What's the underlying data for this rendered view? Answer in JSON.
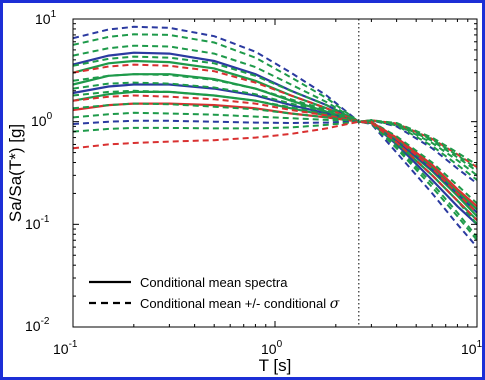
{
  "chart_data": {
    "type": "line",
    "xlabel": "T [s]",
    "ylabel": "Sa/Sa(T*) [g]",
    "xscale": "log",
    "yscale": "log",
    "xlim": [
      0.1,
      10
    ],
    "ylim": [
      0.01,
      10
    ],
    "x_ticks": [
      {
        "base": "10",
        "exp": "-1"
      },
      {
        "base": "10",
        "exp": "0"
      },
      {
        "base": "10",
        "exp": "1"
      }
    ],
    "y_ticks": [
      {
        "base": "10",
        "exp": "-2"
      },
      {
        "base": "10",
        "exp": "-1"
      },
      {
        "base": "10",
        "exp": "0"
      },
      {
        "base": "10",
        "exp": "1"
      }
    ],
    "grid": false,
    "reference_line": {
      "x": 2.6,
      "style": "dotted"
    },
    "legend": {
      "placement": "bottom-left",
      "entries": [
        {
          "label": "Conditional mean spectra",
          "style": "solid"
        },
        {
          "label": "Conditional mean +/- conditional ",
          "symbol": "σ",
          "style": "dashed"
        }
      ]
    },
    "x": [
      0.1,
      0.15,
      0.2,
      0.3,
      0.5,
      0.8,
      1.2,
      1.8,
      2.6,
      3.0,
      4.0,
      6.0,
      8.0,
      10.0
    ],
    "series": [
      {
        "color": "#2b3aa0",
        "style": "solid",
        "values": [
          3.6,
          4.4,
          4.7,
          4.6,
          3.9,
          2.9,
          2.0,
          1.45,
          1.0,
          0.97,
          0.6,
          0.27,
          0.15,
          0.1
        ]
      },
      {
        "color": "#1e9a4a",
        "style": "solid",
        "values": [
          3.0,
          3.7,
          3.9,
          3.8,
          3.3,
          2.5,
          1.8,
          1.35,
          1.0,
          0.97,
          0.62,
          0.3,
          0.17,
          0.11
        ]
      },
      {
        "color": "#1e9a4a",
        "style": "solid",
        "values": [
          2.3,
          2.8,
          2.9,
          2.9,
          2.6,
          2.1,
          1.6,
          1.25,
          1.0,
          0.98,
          0.65,
          0.33,
          0.19,
          0.12
        ]
      },
      {
        "color": "#2b3aa0",
        "style": "solid",
        "values": [
          1.9,
          2.2,
          2.3,
          2.3,
          2.1,
          1.8,
          1.45,
          1.2,
          1.0,
          0.98,
          0.66,
          0.34,
          0.2,
          0.13
        ]
      },
      {
        "color": "#1e9a4a",
        "style": "solid",
        "values": [
          1.6,
          1.85,
          1.95,
          1.95,
          1.8,
          1.6,
          1.35,
          1.15,
          1.0,
          0.98,
          0.68,
          0.36,
          0.21,
          0.14
        ]
      },
      {
        "color": "#d93030",
        "style": "solid",
        "values": [
          1.3,
          1.45,
          1.5,
          1.5,
          1.45,
          1.35,
          1.2,
          1.1,
          1.0,
          0.99,
          0.7,
          0.38,
          0.22,
          0.15
        ]
      },
      {
        "color": "#2b3aa0",
        "style": "dashed",
        "values": [
          6.5,
          7.9,
          8.4,
          8.2,
          6.8,
          4.8,
          3.0,
          1.8,
          1.0,
          1.03,
          0.9,
          0.55,
          0.35,
          0.25
        ]
      },
      {
        "color": "#1e9a4a",
        "style": "dashed",
        "values": [
          5.6,
          6.7,
          7.1,
          7.0,
          5.9,
          4.2,
          2.7,
          1.7,
          1.0,
          1.03,
          0.92,
          0.58,
          0.38,
          0.27
        ]
      },
      {
        "color": "#1e9a4a",
        "style": "dashed",
        "values": [
          4.4,
          5.2,
          5.5,
          5.4,
          4.6,
          3.4,
          2.3,
          1.55,
          1.0,
          1.03,
          0.94,
          0.62,
          0.42,
          0.3
        ]
      },
      {
        "color": "#1e9a4a",
        "style": "dashed",
        "values": [
          3.5,
          4.1,
          4.3,
          4.2,
          3.7,
          2.8,
          2.0,
          1.45,
          1.0,
          1.03,
          0.95,
          0.65,
          0.45,
          0.33
        ]
      },
      {
        "color": "#d93030",
        "style": "dashed",
        "values": [
          3.0,
          3.45,
          3.6,
          3.5,
          3.1,
          2.4,
          1.8,
          1.35,
          1.0,
          1.03,
          0.96,
          0.68,
          0.48,
          0.36
        ]
      },
      {
        "color": "#1e9a4a",
        "style": "dashed",
        "values": [
          2.5,
          2.8,
          2.9,
          2.85,
          2.55,
          2.1,
          1.65,
          1.3,
          1.0,
          1.03,
          0.97,
          0.7,
          0.5,
          0.38
        ]
      },
      {
        "color": "#1e9a4a",
        "style": "dashed",
        "values": [
          2.1,
          2.35,
          2.4,
          2.35,
          2.15,
          1.85,
          1.5,
          1.25,
          1.0,
          1.02,
          0.95,
          0.67,
          0.47,
          0.35
        ]
      },
      {
        "color": "#1e9a4a",
        "style": "dashed",
        "values": [
          1.8,
          1.95,
          2.0,
          1.95,
          1.8,
          1.6,
          1.38,
          1.18,
          1.0,
          1.0,
          0.72,
          0.4,
          0.24,
          0.16
        ]
      },
      {
        "color": "#d93030",
        "style": "dashed",
        "values": [
          1.6,
          1.75,
          1.8,
          1.75,
          1.65,
          1.5,
          1.3,
          1.15,
          1.0,
          1.0,
          0.68,
          0.35,
          0.2,
          0.13
        ]
      },
      {
        "color": "#1e9a4a",
        "style": "dashed",
        "values": [
          1.35,
          1.45,
          1.5,
          1.48,
          1.4,
          1.32,
          1.2,
          1.1,
          1.0,
          0.98,
          0.62,
          0.3,
          0.17,
          0.1
        ]
      },
      {
        "color": "#1e9a4a",
        "style": "dashed",
        "values": [
          1.1,
          1.18,
          1.22,
          1.2,
          1.17,
          1.12,
          1.08,
          1.04,
          1.0,
          0.97,
          0.57,
          0.25,
          0.13,
          0.075
        ]
      },
      {
        "color": "#2b3aa0",
        "style": "dashed",
        "values": [
          0.95,
          1.0,
          1.02,
          1.02,
          1.0,
          0.98,
          0.97,
          0.98,
          1.0,
          0.95,
          0.5,
          0.2,
          0.1,
          0.06
        ]
      },
      {
        "color": "#1e9a4a",
        "style": "dashed",
        "values": [
          0.8,
          0.85,
          0.87,
          0.87,
          0.86,
          0.86,
          0.88,
          0.93,
          1.0,
          0.96,
          0.55,
          0.23,
          0.12,
          0.07
        ]
      },
      {
        "color": "#d93030",
        "style": "dashed",
        "values": [
          0.55,
          0.6,
          0.62,
          0.64,
          0.66,
          0.7,
          0.76,
          0.86,
          1.0,
          0.97,
          0.63,
          0.3,
          0.17,
          0.11
        ]
      }
    ]
  }
}
